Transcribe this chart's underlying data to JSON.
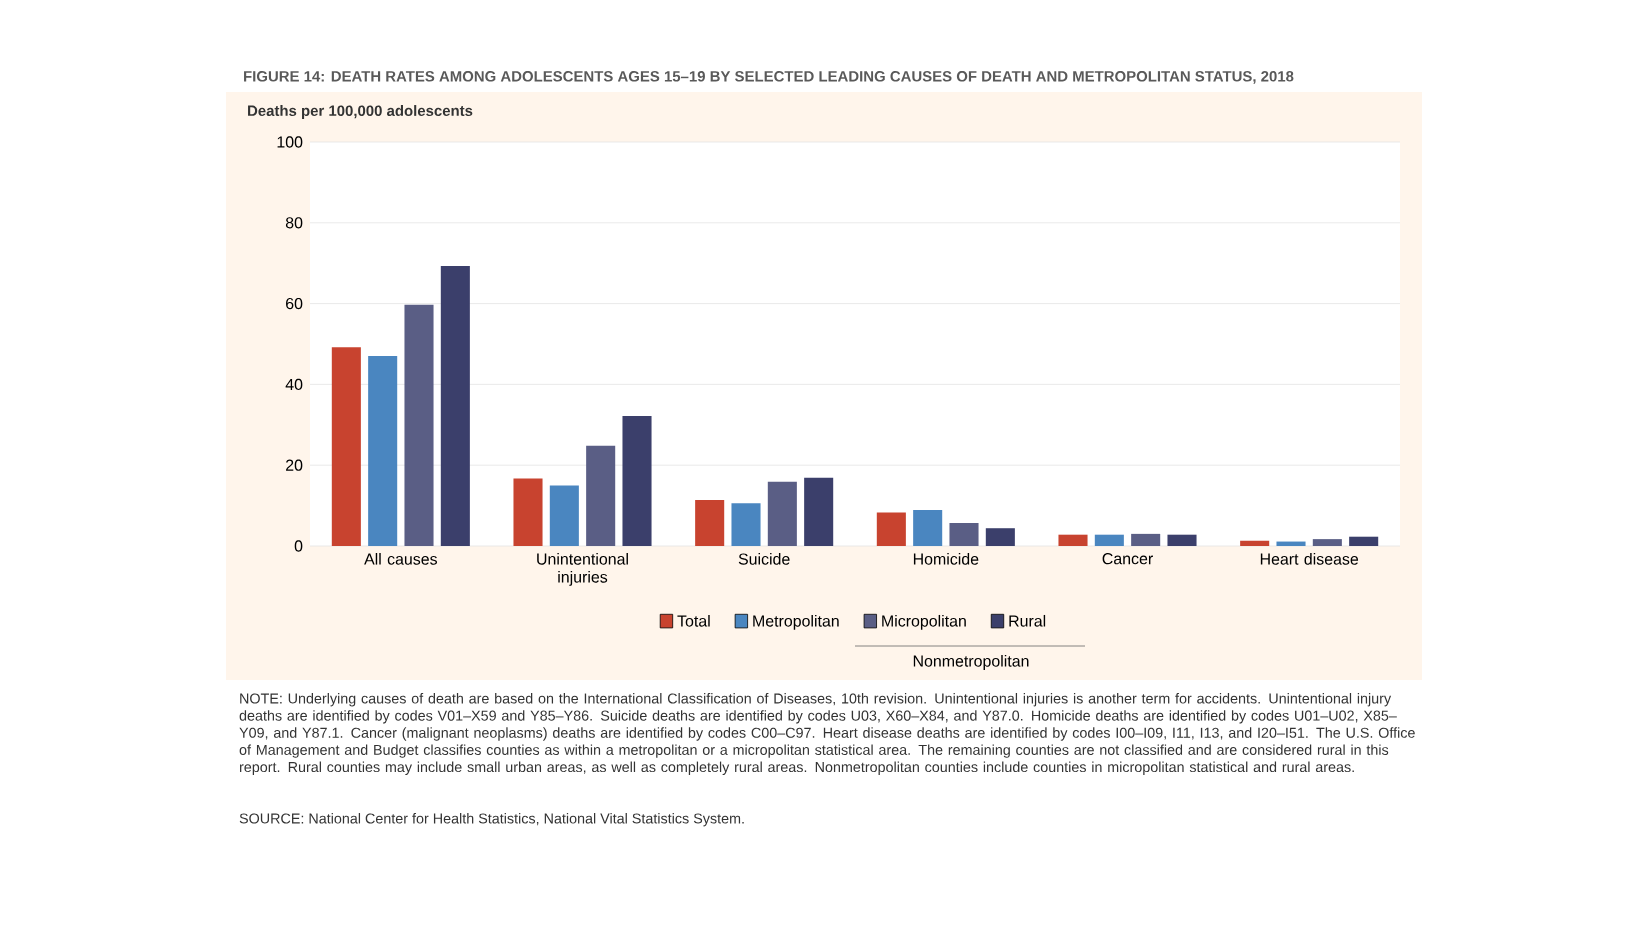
{
  "chart_data": {
    "type": "bar",
    "title": "FIGURE 14: DEATH RATES AMONG ADOLESCENTS AGES 15–19 BY SELECTED LEADING CAUSES OF DEATH AND METROPOLITAN STATUS, 2018",
    "ylabel": "Deaths per 100,000 adolescents",
    "categories": [
      "All causes",
      "Unintentional injuries",
      "Suicide",
      "Homicide",
      "Cancer",
      "Heart disease"
    ],
    "series": [
      {
        "name": "Total",
        "color": "#c8432f",
        "values": [
          49.2,
          16.7,
          11.4,
          8.3,
          2.8,
          1.3
        ]
      },
      {
        "name": "Metropolitan",
        "color": "#4a86c0",
        "values": [
          47.0,
          15.0,
          10.6,
          8.9,
          2.8,
          1.1
        ]
      },
      {
        "name": "Micropolitan",
        "color": "#5a5e85",
        "values": [
          59.7,
          24.8,
          15.9,
          5.7,
          3.0,
          1.7
        ]
      },
      {
        "name": "Rural",
        "color": "#3b3f6b",
        "values": [
          69.3,
          32.2,
          16.9,
          4.4,
          2.8,
          2.3
        ]
      }
    ],
    "ylim": [
      0,
      100
    ],
    "yticks": [
      0,
      20,
      40,
      60,
      80,
      100
    ],
    "grid": "y",
    "legend": "bottom",
    "annotations": [
      "Nonmetropolitan",
      "NOTE: Underlying causes of death are based on the International Classification of Diseases, 10th revision. Unintentional injuries is another term for accidents. Unintentional injury deaths are identified by codes V01–X59 and Y85–Y86. Suicide deaths are identified by codes U03, X60–X84, and Y87.0. Homicide deaths are identified by codes U01–U02, X85–Y09, and Y87.1. Cancer (malignant neoplasms) deaths are identified by codes C00–C97. Heart disease deaths are identified by codes I00–I09, I11, I13, and I20–I51. The U.S. Office of Management and Budget classifies counties as within a metropolitan or a micropolitan statistical area. The remaining counties are not classified and are considered rural in this report. Rural counties may include small urban areas, as well as completely rural areas. Nonmetropolitan counties include counties in micropolitan statistical and rural areas.",
      "SOURCE: National Center for Health Statistics, National Vital Statistics System."
    ]
  }
}
